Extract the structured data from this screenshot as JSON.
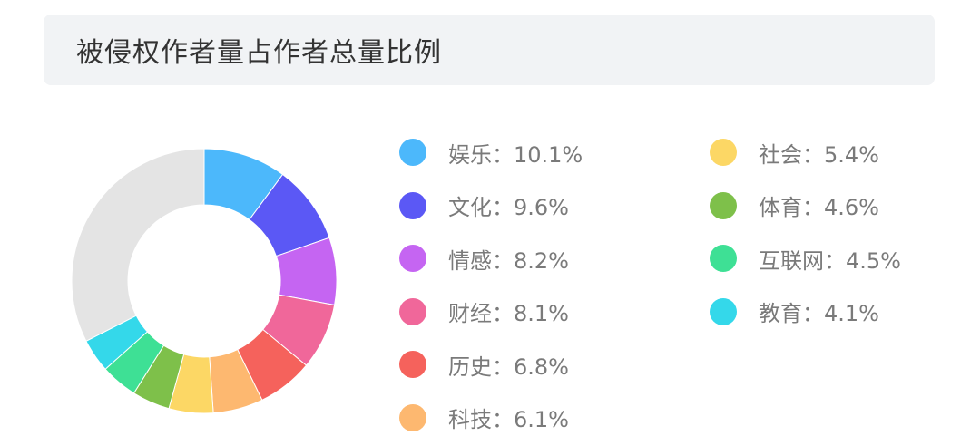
{
  "header": {
    "title": "被侵权作者量占作者总量比例"
  },
  "chart_data": {
    "type": "pie",
    "title": "被侵权作者量占作者总量比例",
    "donut": true,
    "unit": "%",
    "slices": [
      {
        "name": "娱乐",
        "value": 10.1,
        "label": "娱乐：10.1%",
        "color": "#4cb8fb"
      },
      {
        "name": "文化",
        "value": 9.6,
        "label": "文化：9.6%",
        "color": "#5b58f5"
      },
      {
        "name": "情感",
        "value": 8.2,
        "label": "情感：8.2%",
        "color": "#c565f2"
      },
      {
        "name": "财经",
        "value": 8.1,
        "label": "财经：8.1%",
        "color": "#f0679a"
      },
      {
        "name": "历史",
        "value": 6.8,
        "label": "历史：6.8%",
        "color": "#f5625c"
      },
      {
        "name": "科技",
        "value": 6.1,
        "label": "科技：6.1%",
        "color": "#fdb870"
      },
      {
        "name": "社会",
        "value": 5.4,
        "label": "社会：5.4%",
        "color": "#fcd765"
      },
      {
        "name": "体育",
        "value": 4.6,
        "label": "体育：4.6%",
        "color": "#7ec04a"
      },
      {
        "name": "互联网",
        "value": 4.5,
        "label": "互联网：4.5%",
        "color": "#3ee095"
      },
      {
        "name": "教育",
        "value": 4.1,
        "label": "教育：4.1%",
        "color": "#34d8ea"
      }
    ],
    "remainder": {
      "value": 32.5,
      "color": "#e4e4e4"
    },
    "legend_position": "right"
  }
}
